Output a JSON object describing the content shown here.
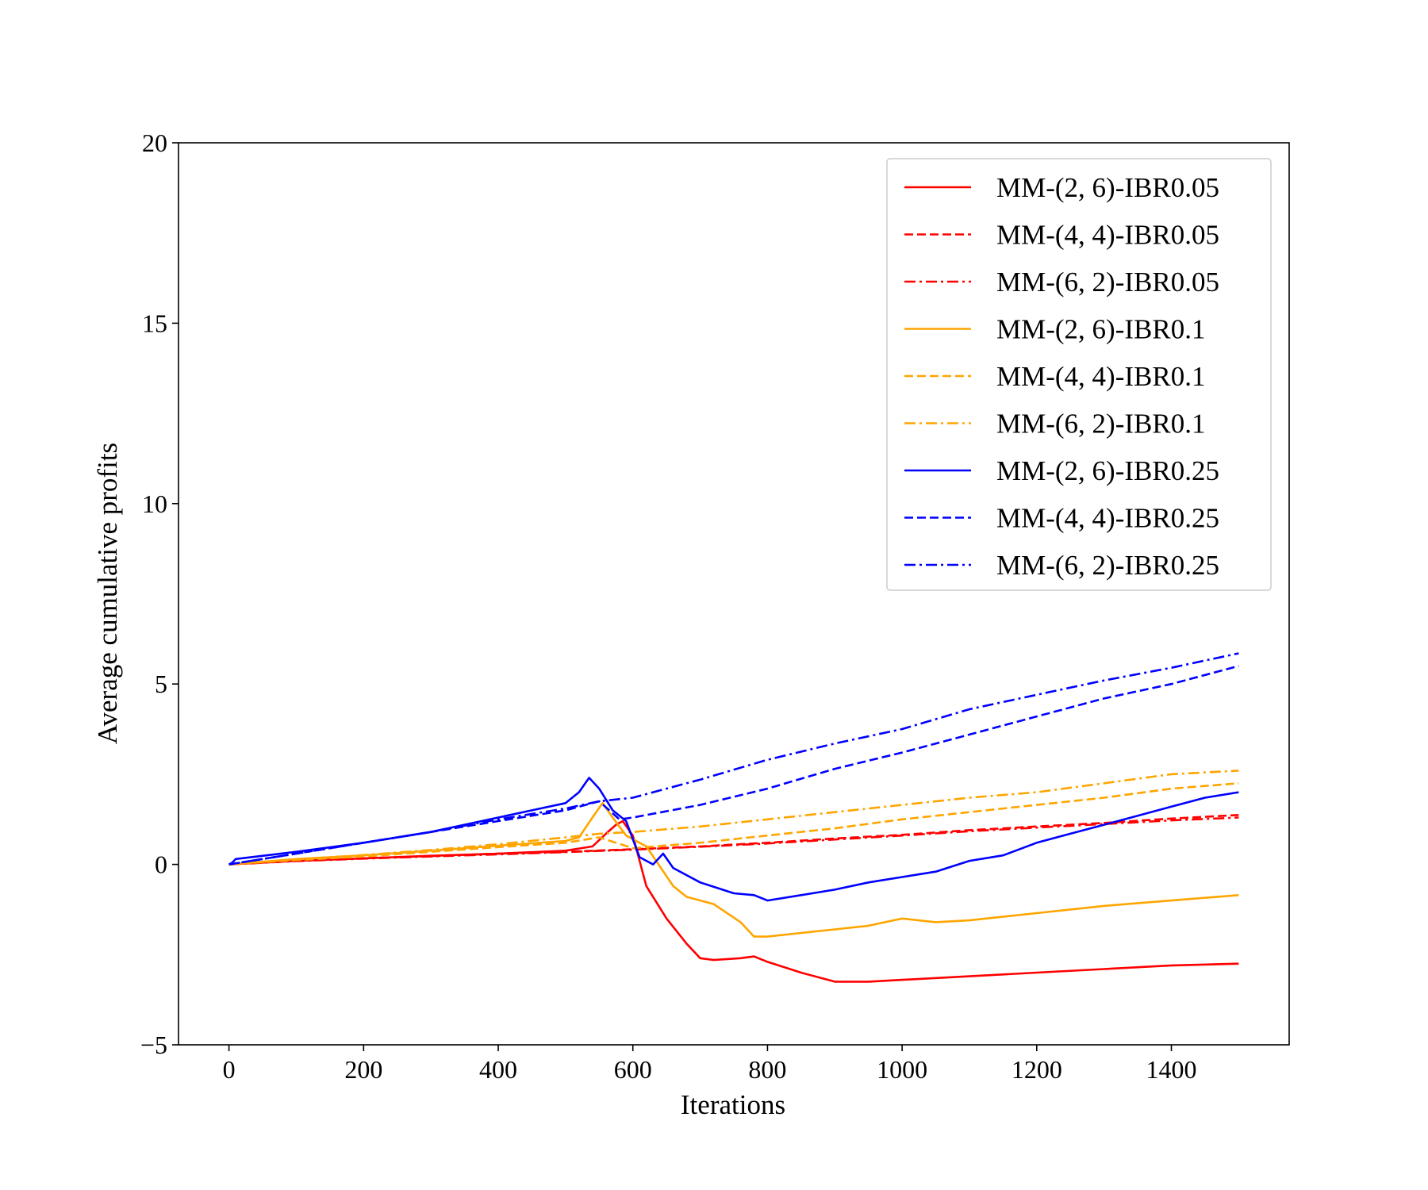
{
  "chart_data": {
    "type": "line",
    "title": "",
    "xlabel": "Iterations",
    "ylabel": "Average cumulative profits",
    "xlim": [
      -75,
      1575
    ],
    "ylim": [
      -5,
      20
    ],
    "xticks": [
      0,
      200,
      400,
      600,
      800,
      1000,
      1200,
      1400
    ],
    "yticks": [
      -5,
      0,
      5,
      10,
      15,
      20
    ],
    "xtick_labels": [
      "0",
      "200",
      "400",
      "600",
      "800",
      "1000",
      "1200",
      "1400"
    ],
    "ytick_labels": [
      "−5",
      "0",
      "5",
      "10",
      "15",
      "20"
    ],
    "grid": false,
    "legend_position": "upper right",
    "series": [
      {
        "name": "MM-(2, 6)-IBR0.05",
        "color": "#ff0000",
        "dash": "solid",
        "x": [
          0,
          100,
          200,
          300,
          400,
          500,
          540,
          560,
          575,
          585,
          600,
          620,
          650,
          680,
          700,
          720,
          760,
          780,
          800,
          850,
          900,
          950,
          1000,
          1100,
          1200,
          1300,
          1400,
          1500
        ],
        "y": [
          0,
          0.1,
          0.17,
          0.24,
          0.3,
          0.38,
          0.5,
          0.85,
          1.1,
          1.2,
          0.8,
          -0.6,
          -1.5,
          -2.2,
          -2.6,
          -2.65,
          -2.6,
          -2.55,
          -2.7,
          -3.0,
          -3.25,
          -3.25,
          -3.2,
          -3.1,
          -3.0,
          -2.9,
          -2.8,
          -2.75
        ]
      },
      {
        "name": "MM-(4, 4)-IBR0.05",
        "color": "#ff0000",
        "dash": "dashed",
        "x": [
          0,
          100,
          200,
          300,
          400,
          500,
          600,
          700,
          800,
          900,
          1000,
          1100,
          1200,
          1300,
          1400,
          1500
        ],
        "y": [
          0,
          0.1,
          0.17,
          0.23,
          0.3,
          0.35,
          0.42,
          0.5,
          0.6,
          0.72,
          0.82,
          0.95,
          1.05,
          1.15,
          1.27,
          1.37
        ]
      },
      {
        "name": "MM-(6, 2)-IBR0.05",
        "color": "#ff0000",
        "dash": "dashdot",
        "x": [
          0,
          100,
          200,
          300,
          400,
          500,
          600,
          700,
          800,
          900,
          1000,
          1100,
          1200,
          1300,
          1400,
          1500
        ],
        "y": [
          0,
          0.09,
          0.16,
          0.22,
          0.28,
          0.34,
          0.41,
          0.49,
          0.58,
          0.69,
          0.8,
          0.92,
          1.02,
          1.12,
          1.22,
          1.3
        ]
      },
      {
        "name": "MM-(2, 6)-IBR0.1",
        "color": "#ffa500",
        "dash": "solid",
        "x": [
          0,
          100,
          200,
          300,
          400,
          500,
          520,
          540,
          555,
          570,
          590,
          620,
          660,
          680,
          720,
          760,
          780,
          800,
          850,
          900,
          950,
          1000,
          1050,
          1100,
          1200,
          1300,
          1400,
          1500
        ],
        "y": [
          0,
          0.15,
          0.25,
          0.38,
          0.52,
          0.65,
          0.75,
          1.3,
          1.7,
          1.3,
          0.8,
          0.5,
          -0.6,
          -0.9,
          -1.1,
          -1.6,
          -2.0,
          -2.0,
          -1.9,
          -1.8,
          -1.7,
          -1.5,
          -1.6,
          -1.55,
          -1.35,
          -1.15,
          -1.0,
          -0.85
        ]
      },
      {
        "name": "MM-(4, 4)-IBR0.1",
        "color": "#ffa500",
        "dash": "dashed",
        "x": [
          0,
          100,
          200,
          300,
          400,
          500,
          550,
          600,
          700,
          800,
          900,
          1000,
          1100,
          1200,
          1300,
          1400,
          1500
        ],
        "y": [
          0,
          0.12,
          0.22,
          0.35,
          0.48,
          0.6,
          0.75,
          0.45,
          0.6,
          0.8,
          1.0,
          1.25,
          1.45,
          1.65,
          1.85,
          2.1,
          2.25
        ]
      },
      {
        "name": "MM-(6, 2)-IBR0.1",
        "color": "#ffa500",
        "dash": "dashdot",
        "x": [
          0,
          100,
          200,
          300,
          400,
          500,
          550,
          600,
          700,
          800,
          900,
          1000,
          1100,
          1200,
          1300,
          1400,
          1500
        ],
        "y": [
          0,
          0.14,
          0.26,
          0.4,
          0.56,
          0.75,
          0.85,
          0.9,
          1.05,
          1.25,
          1.45,
          1.65,
          1.85,
          2.0,
          2.25,
          2.5,
          2.6
        ]
      },
      {
        "name": "MM-(2, 6)-IBR0.25",
        "color": "#0000ff",
        "dash": "solid",
        "x": [
          0,
          5,
          10,
          100,
          200,
          300,
          400,
          450,
          500,
          520,
          535,
          550,
          570,
          590,
          610,
          630,
          645,
          660,
          700,
          750,
          780,
          800,
          850,
          900,
          950,
          1000,
          1050,
          1100,
          1150,
          1200,
          1250,
          1300,
          1350,
          1400,
          1450,
          1500
        ],
        "y": [
          0,
          0.05,
          0.15,
          0.35,
          0.6,
          0.9,
          1.3,
          1.5,
          1.7,
          2.0,
          2.4,
          2.1,
          1.5,
          1.2,
          0.2,
          0.0,
          0.3,
          -0.1,
          -0.5,
          -0.8,
          -0.85,
          -1.0,
          -0.85,
          -0.7,
          -0.5,
          -0.35,
          -0.2,
          0.1,
          0.25,
          0.6,
          0.85,
          1.1,
          1.35,
          1.6,
          1.85,
          2.0
        ]
      },
      {
        "name": "MM-(4, 4)-IBR0.25",
        "color": "#0000ff",
        "dash": "dashed",
        "x": [
          0,
          100,
          200,
          300,
          400,
          500,
          550,
          580,
          600,
          700,
          800,
          900,
          1000,
          1100,
          1200,
          1300,
          1400,
          1500
        ],
        "y": [
          0,
          0.3,
          0.6,
          0.9,
          1.2,
          1.5,
          1.75,
          1.25,
          1.3,
          1.65,
          2.1,
          2.65,
          3.1,
          3.6,
          4.1,
          4.6,
          5.0,
          5.5
        ]
      },
      {
        "name": "MM-(6, 2)-IBR0.25",
        "color": "#0000ff",
        "dash": "dashdot",
        "x": [
          0,
          100,
          200,
          300,
          400,
          500,
          550,
          600,
          700,
          800,
          900,
          1000,
          1100,
          1200,
          1300,
          1400,
          1500
        ],
        "y": [
          0,
          0.3,
          0.6,
          0.9,
          1.25,
          1.55,
          1.75,
          1.85,
          2.35,
          2.9,
          3.35,
          3.75,
          4.3,
          4.7,
          5.1,
          5.45,
          5.85
        ]
      }
    ]
  }
}
